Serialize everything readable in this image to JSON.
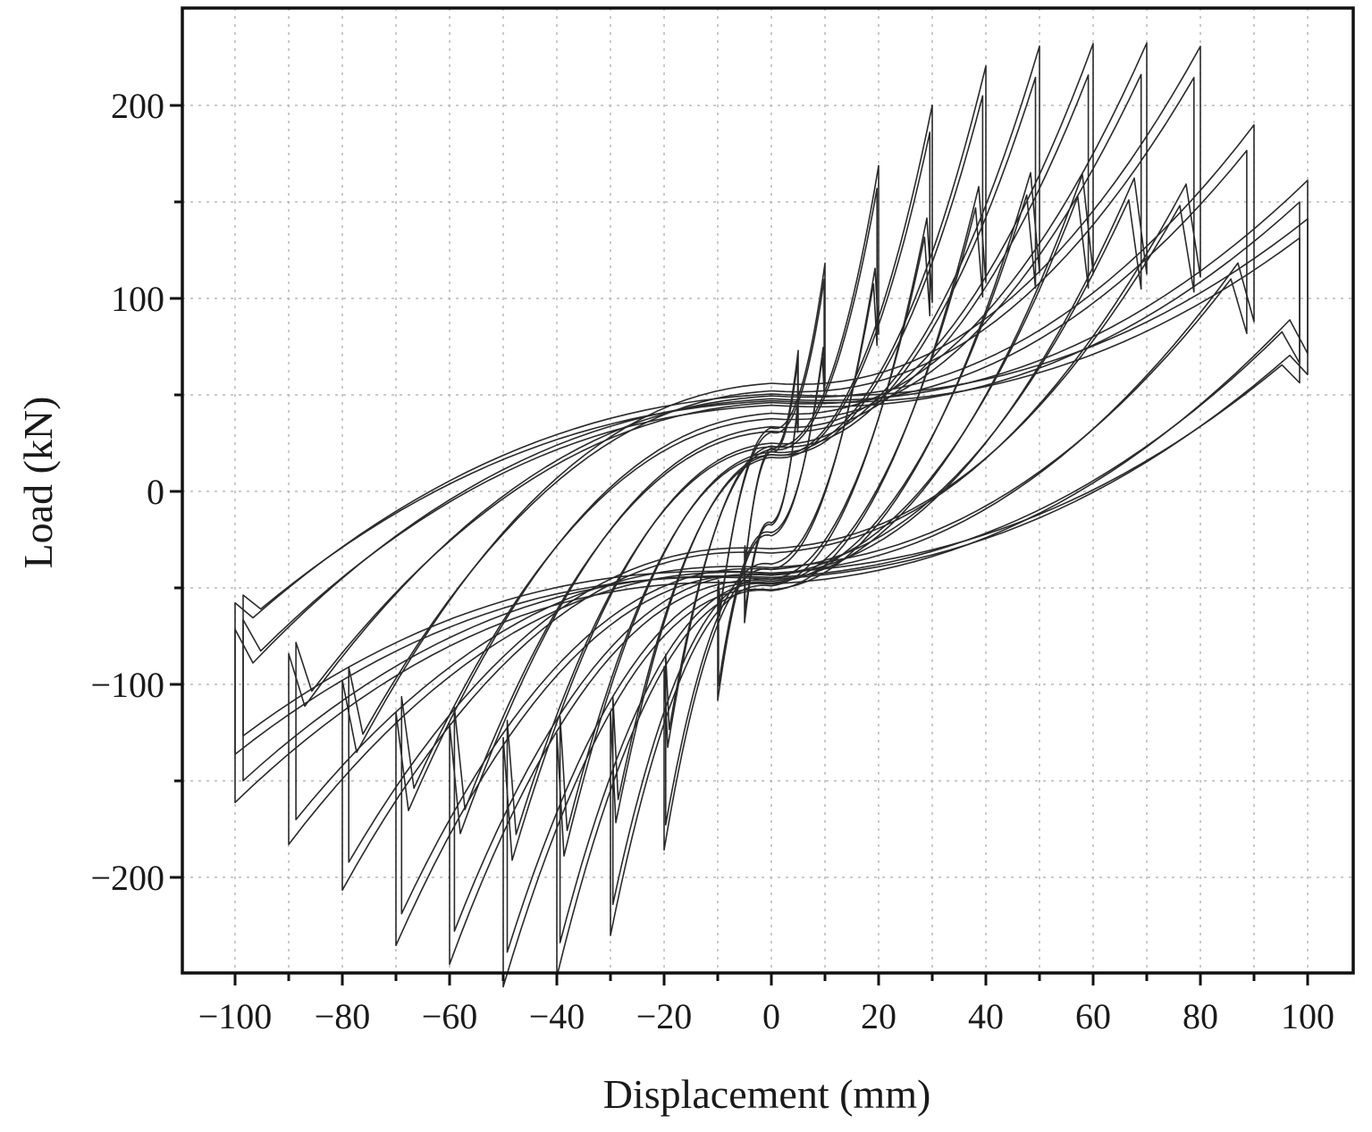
{
  "chart_data": {
    "type": "line",
    "title": "",
    "xlabel": "Displacement (mm)",
    "ylabel": "Load (kN)",
    "xlim": [
      -110,
      105
    ],
    "ylim": [
      -250,
      250
    ],
    "x_ticks": [
      -100,
      -80,
      -60,
      -40,
      -20,
      0,
      20,
      40,
      60,
      80,
      100
    ],
    "x_tick_labels": [
      "−100",
      "−80",
      "−60",
      "−40",
      "−20",
      "0",
      "20",
      "40",
      "60",
      "80",
      "100"
    ],
    "x_minor_ticks": [
      -90,
      -70,
      -50,
      -30,
      -10,
      10,
      30,
      50,
      70,
      90
    ],
    "y_ticks": [
      -200,
      -100,
      0,
      100,
      200
    ],
    "y_tick_labels": [
      "−200",
      "−100",
      "0",
      "100",
      "200"
    ],
    "y_minor_ticks": [
      -150,
      -50,
      50,
      150
    ],
    "grid": true,
    "legend": "none",
    "line_color": "#2a2a2a",
    "series": [
      {
        "amplitude_mm": 5,
        "peak_pos_kN": 60,
        "peak_neg_kN": -55,
        "residual_kN": 20
      },
      {
        "amplitude_mm": 10,
        "peak_pos_kN": 100,
        "peak_neg_kN": -90,
        "residual_kN": 28
      },
      {
        "amplitude_mm": 20,
        "peak_pos_kN": 148,
        "peak_neg_kN": -165,
        "residual_kN": 32
      },
      {
        "amplitude_mm": 30,
        "peak_pos_kN": 178,
        "peak_neg_kN": -208,
        "residual_kN": 34
      },
      {
        "amplitude_mm": 40,
        "peak_pos_kN": 197,
        "peak_neg_kN": -228,
        "residual_kN": 36
      },
      {
        "amplitude_mm": 50,
        "peak_pos_kN": 206,
        "peak_neg_kN": -232,
        "residual_kN": 38
      },
      {
        "amplitude_mm": 60,
        "peak_pos_kN": 206,
        "peak_neg_kN": -219,
        "residual_kN": 40
      },
      {
        "amplitude_mm": 70,
        "peak_pos_kN": 205,
        "peak_neg_kN": -208,
        "residual_kN": 42
      },
      {
        "amplitude_mm": 80,
        "peak_pos_kN": 202,
        "peak_neg_kN": -178,
        "residual_kN": 44
      },
      {
        "amplitude_mm": 90,
        "peak_pos_kN": 160,
        "peak_neg_kN": -153,
        "residual_kN": 46
      },
      {
        "amplitude_mm": 100,
        "peak_pos_kN": 130,
        "peak_neg_kN": -130,
        "residual_kN": 48
      },
      {
        "amplitude_mm": 100,
        "peak_pos_kN": 110,
        "peak_neg_kN": -105,
        "residual_kN": 48
      }
    ]
  }
}
